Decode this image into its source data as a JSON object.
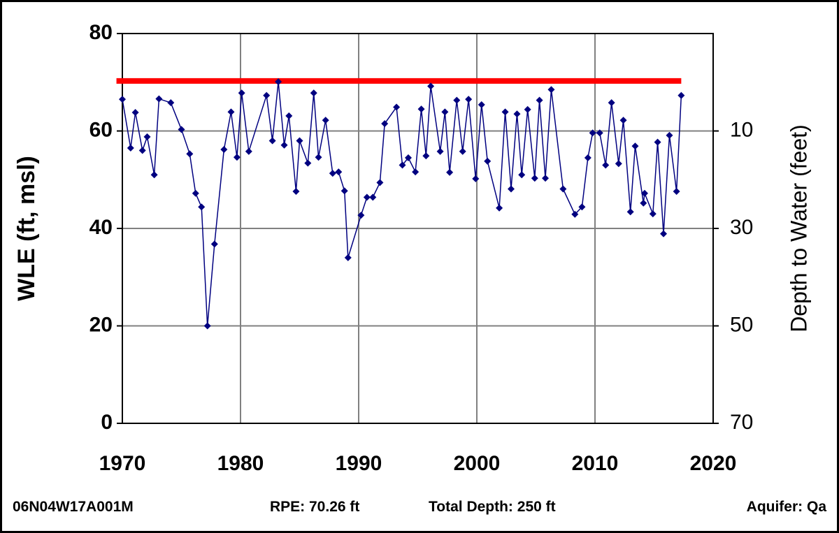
{
  "chart_data": {
    "type": "line",
    "y_label": "WLE (ft, msl)",
    "y2_label": "Depth to Water (feet)",
    "x": [
      1970.0,
      1970.7,
      1971.1,
      1971.7,
      1972.1,
      1972.7,
      1973.1,
      1974.1,
      1975.0,
      1975.7,
      1976.2,
      1976.7,
      1977.2,
      1977.8,
      1978.6,
      1979.2,
      1979.7,
      1980.1,
      1980.7,
      1982.2,
      1982.7,
      1983.2,
      1983.7,
      1984.1,
      1984.7,
      1985.0,
      1985.7,
      1986.2,
      1986.6,
      1987.2,
      1987.8,
      1988.3,
      1988.8,
      1989.1,
      1990.2,
      1990.7,
      1991.2,
      1991.8,
      1992.2,
      1993.2,
      1993.7,
      1994.2,
      1994.8,
      1995.3,
      1995.7,
      1996.1,
      1996.9,
      1997.3,
      1997.7,
      1998.3,
      1998.8,
      1999.3,
      1999.9,
      2000.4,
      2000.9,
      2001.9,
      2002.4,
      2002.9,
      2003.4,
      2003.8,
      2004.3,
      2004.9,
      2005.3,
      2005.8,
      2006.3,
      2007.3,
      2008.3,
      2008.9,
      2009.4,
      2009.8,
      2010.4,
      2010.9,
      2011.4,
      2012.0,
      2012.4,
      2013.0,
      2013.4,
      2014.1,
      2014.2,
      2014.9,
      2015.3,
      2015.8,
      2016.3,
      2016.9,
      2017.3
    ],
    "values": [
      66.5,
      56.5,
      63.8,
      56,
      58.8,
      51,
      66.6,
      65.8,
      60.3,
      55.3,
      47.2,
      44.4,
      20,
      36.8,
      56.2,
      63.9,
      54.6,
      67.8,
      55.8,
      67.3,
      58,
      70.1,
      57.1,
      63.1,
      47.6,
      58,
      53.4,
      67.8,
      54.6,
      62.2,
      51.3,
      51.6,
      47.7,
      34,
      42.7,
      46.4,
      46.4,
      49.4,
      61.5,
      64.9,
      53,
      54.5,
      51.6,
      64.5,
      54.9,
      69.2,
      55.8,
      63.9,
      51.5,
      66.3,
      55.8,
      66.5,
      50.2,
      65.4,
      53.8,
      44.2,
      63.9,
      48.1,
      63.5,
      51,
      64.4,
      50.3,
      66.3,
      50.3,
      68.5,
      48.1,
      42.9,
      44.4,
      54.5,
      59.6,
      59.6,
      53,
      65.8,
      53.3,
      62.2,
      43.4,
      56.9,
      45.2,
      47.2,
      43,
      57.7,
      38.9,
      59.1,
      47.6,
      67.3
    ],
    "color": "#000080",
    "reference_line": {
      "value": 70.26,
      "x": [
        1969.5,
        2017.3
      ],
      "color": "#ff0000"
    },
    "xlim": [
      1970,
      2020
    ],
    "xticks": [
      1970,
      1980,
      1990,
      2000,
      2010,
      2020
    ],
    "ylim": [
      0,
      80
    ],
    "yticks": [
      0,
      20,
      40,
      60,
      80
    ],
    "y2lim": [
      70,
      -10
    ],
    "y2ticks": [
      10,
      30,
      50,
      70
    ],
    "grid": true
  },
  "footer": {
    "well_id": "06N04W17A001M",
    "rpe": "RPE: 70.26 ft",
    "total_depth": "Total Depth: 250 ft",
    "aquifer": "Aquifer: Qa"
  }
}
